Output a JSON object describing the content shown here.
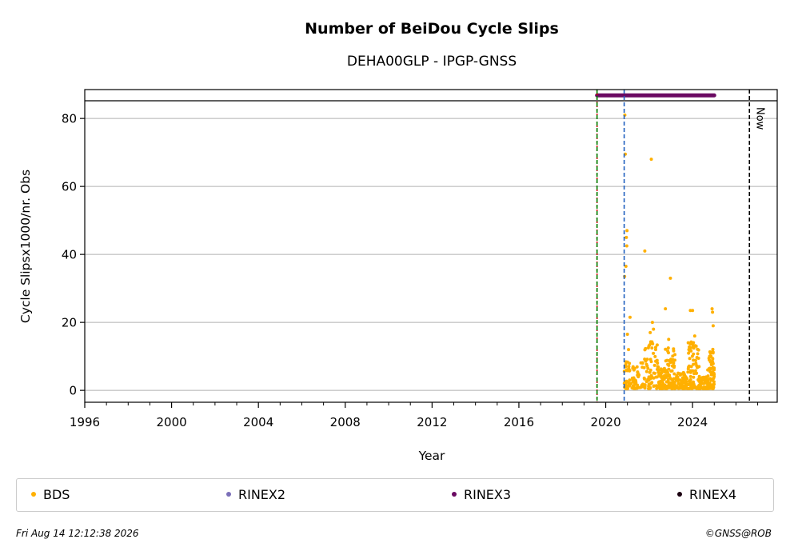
{
  "chart_data": {
    "type": "scatter",
    "title": "Number of BeiDou Cycle Slips",
    "subtitle": "DEHA00GLP - IPGP-GNSS",
    "xlabel": "Year",
    "ylabel": "Cycle Slipsx1000/nr. Obs",
    "xlim": [
      1996.0,
      2027.9
    ],
    "ylim": [
      -3.5,
      88.5
    ],
    "xticks": [
      1996,
      2000,
      2004,
      2008,
      2012,
      2016,
      2020,
      2024
    ],
    "xtick_labels": [
      "1996",
      "2000",
      "2004",
      "2008",
      "2012",
      "2016",
      "2020",
      "2024"
    ],
    "yticks": [
      0,
      20,
      40,
      60,
      80
    ],
    "ytick_labels": [
      "0",
      "20",
      "40",
      "60",
      "80"
    ],
    "grid": "horizontal",
    "legend_position": "below",
    "series": [
      {
        "name": "BDS",
        "color": "#ffb000",
        "kind": "points",
        "points": [
          [
            2020.88,
            81.0
          ],
          [
            2020.9,
            69.5
          ],
          [
            2020.98,
            47.0
          ],
          [
            2020.95,
            45.0
          ],
          [
            2020.97,
            42.5
          ],
          [
            2020.93,
            36.5
          ],
          [
            2020.87,
            33.5
          ],
          [
            2021.12,
            21.5
          ],
          [
            2021.0,
            16.5
          ],
          [
            2021.05,
            12.0
          ],
          [
            2021.8,
            41.0
          ],
          [
            2022.1,
            68.0
          ],
          [
            2022.98,
            33.0
          ],
          [
            2022.75,
            24.0
          ],
          [
            2022.15,
            20.0
          ],
          [
            2022.2,
            18.0
          ],
          [
            2022.05,
            17.0
          ],
          [
            2023.9,
            23.5
          ],
          [
            2024.0,
            23.5
          ],
          [
            2024.9,
            24.0
          ],
          [
            2024.92,
            23.0
          ],
          [
            2024.95,
            19.0
          ],
          [
            2021.3,
            6.0
          ],
          [
            2021.5,
            4.0
          ],
          [
            2021.7,
            8.0
          ],
          [
            2022.3,
            12.0
          ],
          [
            2022.5,
            5.0
          ],
          [
            2022.9,
            15.0
          ],
          [
            2023.1,
            9.0
          ],
          [
            2023.4,
            3.0
          ],
          [
            2023.6,
            5.0
          ],
          [
            2023.8,
            14.0
          ],
          [
            2024.1,
            16.0
          ],
          [
            2024.3,
            7.0
          ],
          [
            2024.5,
            3.0
          ],
          [
            2024.7,
            6.0
          ],
          [
            2024.85,
            10.0
          ]
        ]
      },
      {
        "name": "RINEX2",
        "color": "#7b6fb8",
        "kind": "points",
        "points": []
      },
      {
        "name": "RINEX3",
        "color": "#6a0a62",
        "kind": "band",
        "x_start": 2019.6,
        "x_end": 2025.0,
        "y": 86.8
      },
      {
        "name": "RINEX4",
        "color": "#1a0010",
        "kind": "points",
        "points": []
      }
    ],
    "vlines": [
      {
        "x": 2019.6,
        "color": "#cc0000",
        "style": "dotted"
      },
      {
        "x": 2019.6,
        "color": "#008000",
        "style": "dashed"
      },
      {
        "x": 2020.85,
        "color": "#1f5fbf",
        "style": "dashed"
      },
      {
        "x": 2026.62,
        "color": "#000000",
        "style": "dashed",
        "label": "Now"
      }
    ],
    "top_band_y": 85.2
  },
  "legend": {
    "items": [
      {
        "label": "BDS",
        "color": "#ffb000"
      },
      {
        "label": "RINEX2",
        "color": "#7b6fb8"
      },
      {
        "label": "RINEX3",
        "color": "#6a0a62"
      },
      {
        "label": "RINEX4",
        "color": "#1a0010"
      }
    ]
  },
  "footer": {
    "timestamp": "Fri Aug 14 12:12:38 2026",
    "credit": "©GNSS@ROB"
  }
}
